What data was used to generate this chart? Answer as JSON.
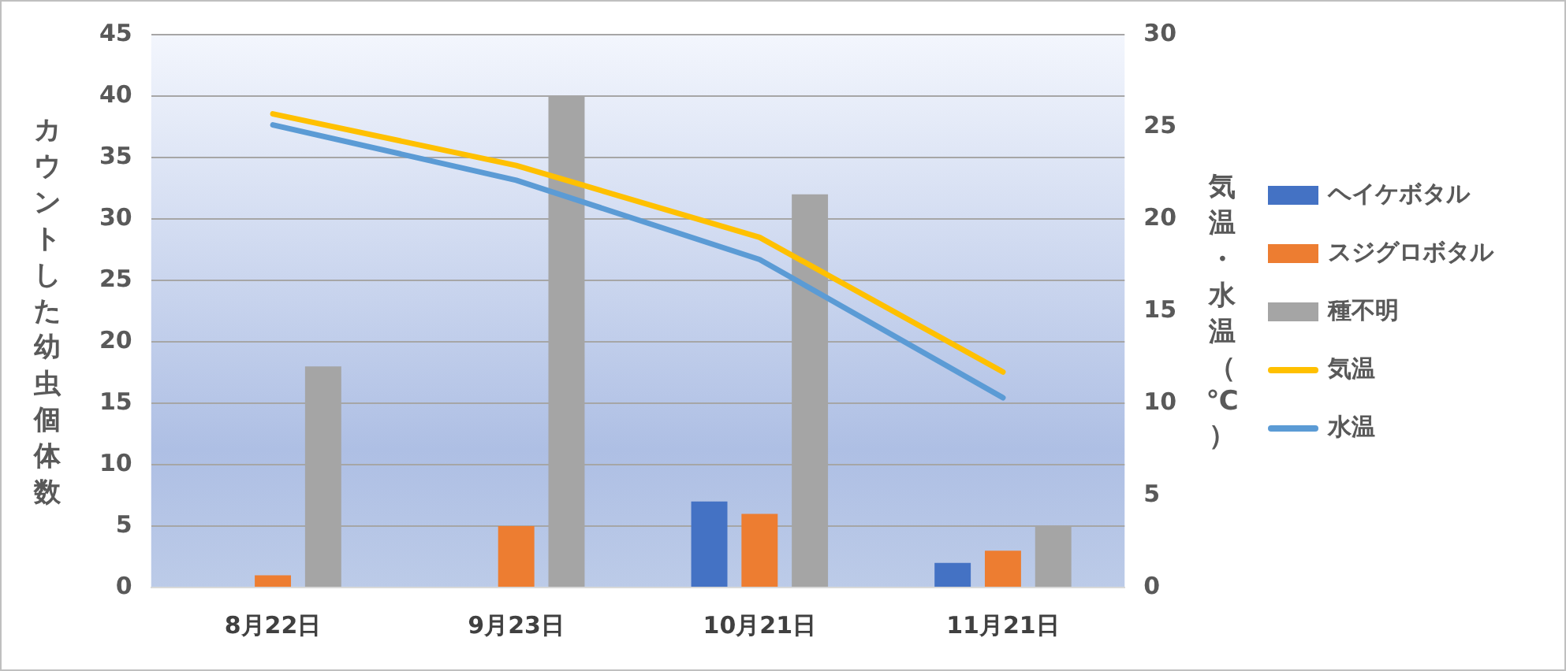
{
  "chart_data": {
    "type": "bar",
    "categories": [
      "8月22日",
      "9月23日",
      "10月21日",
      "11月21日"
    ],
    "ylabel": "カウントした幼虫個体数",
    "y2label": "気温・水温（℃）",
    "ylim": [
      0,
      45
    ],
    "yticks": [
      0,
      5,
      10,
      15,
      20,
      25,
      30,
      35,
      40,
      45
    ],
    "y2lim": [
      0,
      30
    ],
    "y2ticks": [
      0,
      5,
      10,
      15,
      20,
      25,
      30
    ],
    "grid": "y",
    "legend": "right",
    "series": [
      {
        "name": "ヘイケボタル",
        "color": "#4472c4",
        "values": [
          0,
          0,
          7,
          2
        ]
      },
      {
        "name": "スジグロボタル",
        "color": "#ed7d31",
        "values": [
          1,
          5,
          6,
          3
        ]
      },
      {
        "name": "種不明",
        "color": "#a5a5a5",
        "values": [
          18,
          40,
          32,
          5
        ]
      },
      {
        "name": "気温",
        "type": "line",
        "axis": "y2",
        "color": "#ffc000",
        "values": [
          25.7,
          22.9,
          19.0,
          11.7
        ]
      },
      {
        "name": "水温",
        "type": "line",
        "axis": "y2",
        "color": "#5b9bd5",
        "values": [
          25.1,
          22.1,
          17.8,
          10.3
        ]
      }
    ]
  }
}
